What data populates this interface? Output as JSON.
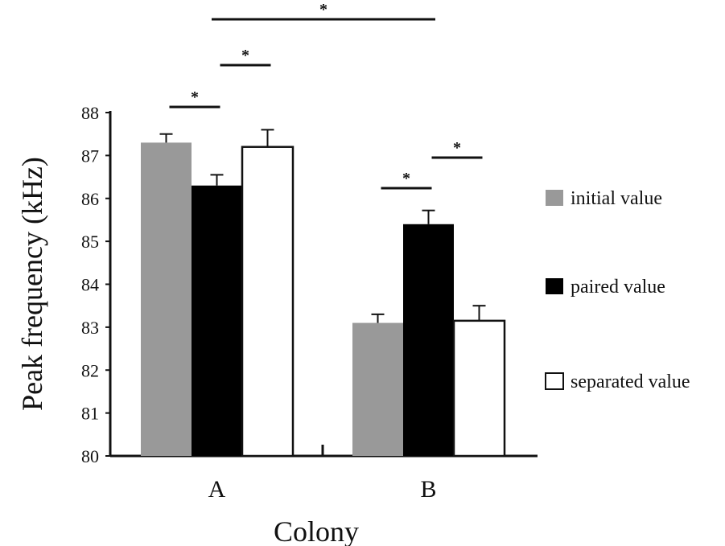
{
  "chart_data": {
    "type": "bar",
    "xlabel": "Colony",
    "ylabel": "Peak frequency (kHz)",
    "ylim": [
      80,
      88
    ],
    "yticks": [
      80,
      81,
      82,
      83,
      84,
      85,
      86,
      87,
      88
    ],
    "categories": [
      "A",
      "B"
    ],
    "series": [
      {
        "name": "initial value",
        "color": "#999999",
        "values": [
          87.3,
          83.1
        ],
        "errors": [
          0.2,
          0.2
        ]
      },
      {
        "name": "paired value",
        "color": "#000000",
        "values": [
          86.3,
          85.4
        ],
        "errors": [
          0.25,
          0.32
        ]
      },
      {
        "name": "separated value",
        "color": "#ffffff",
        "values": [
          87.2,
          83.15
        ],
        "errors": [
          0.4,
          0.35
        ]
      }
    ],
    "significance": [
      {
        "category": "A",
        "from_series": 0,
        "to_series": 1,
        "label": "*"
      },
      {
        "category": "A",
        "from_series": 1,
        "to_series": 2,
        "label": "*"
      },
      {
        "category": "B",
        "from_series": 0,
        "to_series": 1,
        "label": "*"
      },
      {
        "category": "B",
        "from_series": 1,
        "to_series": 2,
        "label": "*"
      },
      {
        "between_categories": [
          "A",
          "B"
        ],
        "label": "*"
      }
    ],
    "legend_position": "right",
    "grid": false
  }
}
